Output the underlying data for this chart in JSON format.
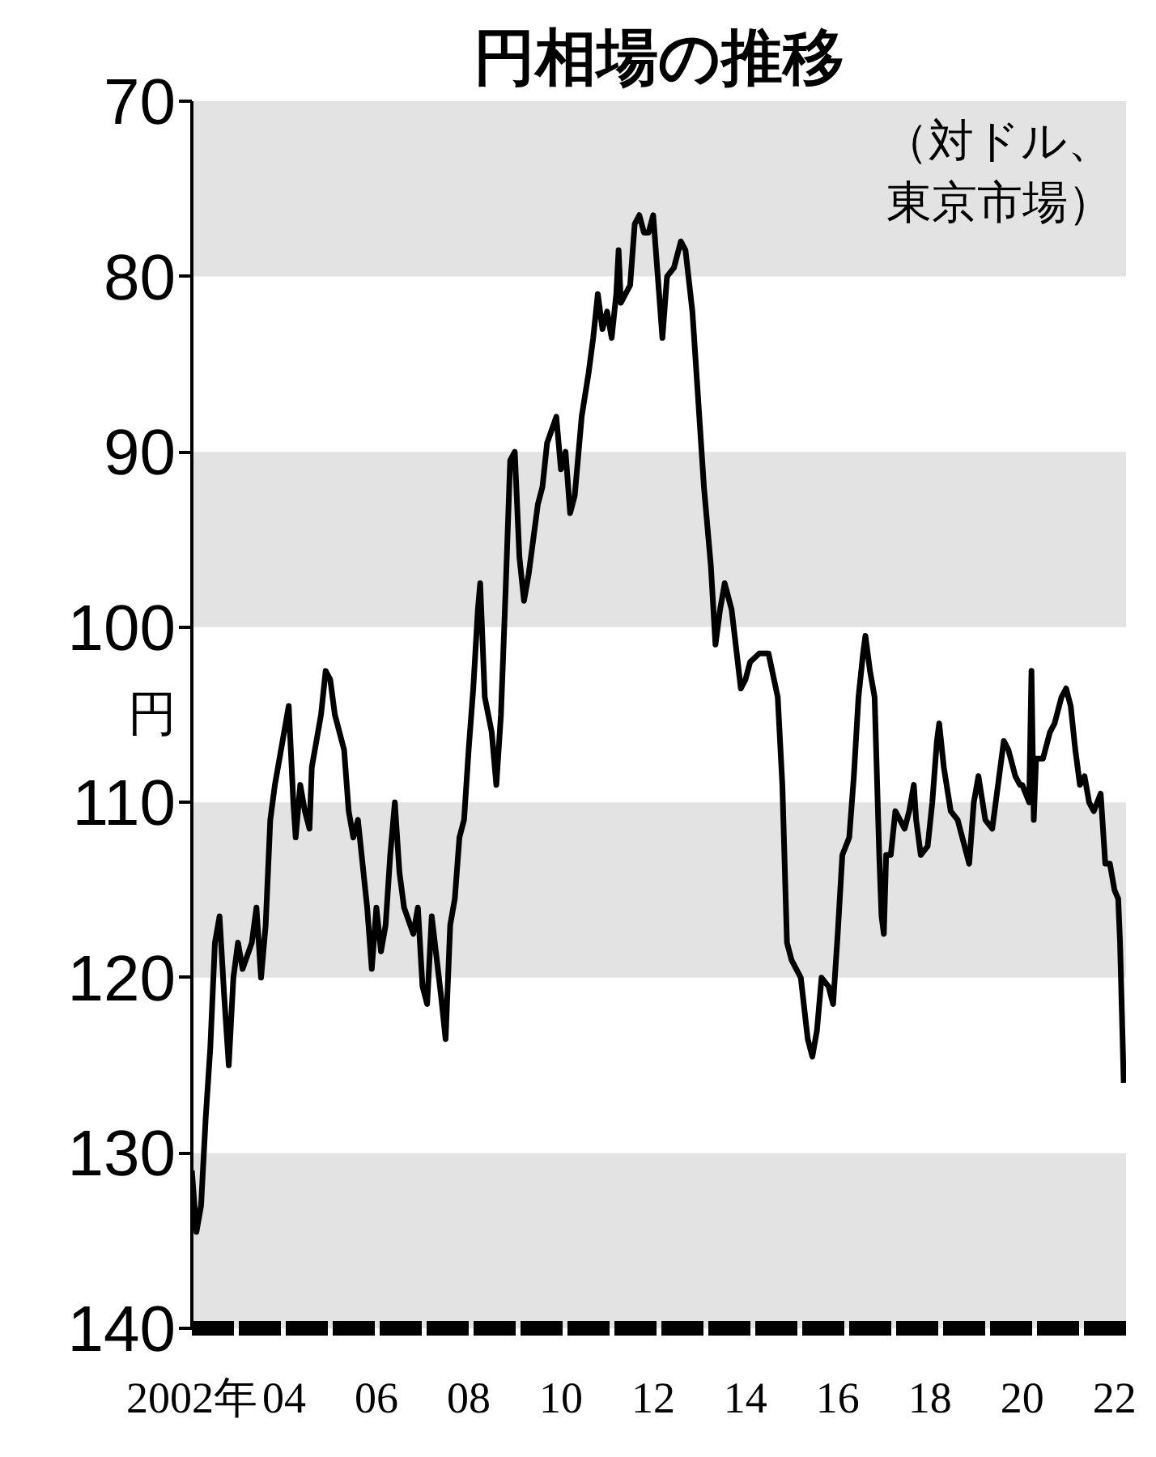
{
  "chart_data": {
    "type": "line",
    "title": "円相場の推移",
    "ylabel": "円",
    "annotations": [
      "（対ドル、東京市場）"
    ],
    "xlim": [
      2002,
      2022.25
    ],
    "xticks": [
      {
        "value": 2002,
        "label": "2002年"
      },
      {
        "value": 2004,
        "label": "04"
      },
      {
        "value": 2006,
        "label": "06"
      },
      {
        "value": 2008,
        "label": "08"
      },
      {
        "value": 2010,
        "label": "10"
      },
      {
        "value": 2012,
        "label": "12"
      },
      {
        "value": 2014,
        "label": "14"
      },
      {
        "value": 2016,
        "label": "16"
      },
      {
        "value": 2018,
        "label": "18"
      },
      {
        "value": 2020,
        "label": "20"
      },
      {
        "value": 2022,
        "label": "22"
      }
    ],
    "ylim": [
      140,
      70
    ],
    "yticks": [
      70,
      80,
      90,
      100,
      110,
      120,
      130,
      140
    ],
    "grid": false,
    "marker": "none",
    "line_style": "solid",
    "bands": [
      {
        "axis": "y",
        "from": 70,
        "to": 80,
        "color": "#e3e3e3"
      },
      {
        "axis": "y",
        "from": 90,
        "to": 100,
        "color": "#e3e3e3"
      },
      {
        "axis": "y",
        "from": 110,
        "to": 120,
        "color": "#e3e3e3"
      },
      {
        "axis": "y",
        "from": 130,
        "to": 140,
        "color": "#e3e3e3"
      }
    ],
    "series": [
      {
        "color": "#000000",
        "x": [
          2002.0,
          2002.1,
          2002.2,
          2002.3,
          2002.4,
          2002.5,
          2002.6,
          2002.7,
          2002.8,
          2002.9,
          2003.0,
          2003.1,
          2003.3,
          2003.4,
          2003.5,
          2003.6,
          2003.7,
          2003.8,
          2003.9,
          2004.0,
          2004.1,
          2004.2,
          2004.25,
          2004.35,
          2004.45,
          2004.55,
          2004.6,
          2004.8,
          2004.9,
          2005.0,
          2005.1,
          2005.3,
          2005.4,
          2005.5,
          2005.6,
          2005.8,
          2005.9,
          2006.0,
          2006.1,
          2006.2,
          2006.3,
          2006.4,
          2006.5,
          2006.6,
          2006.8,
          2006.9,
          2007.0,
          2007.1,
          2007.2,
          2007.4,
          2007.5,
          2007.6,
          2007.7,
          2007.8,
          2007.9,
          2008.0,
          2008.1,
          2008.2,
          2008.25,
          2008.35,
          2008.5,
          2008.6,
          2008.7,
          2008.8,
          2008.9,
          2009.0,
          2009.1,
          2009.2,
          2009.3,
          2009.4,
          2009.5,
          2009.6,
          2009.7,
          2009.9,
          2010.0,
          2010.1,
          2010.2,
          2010.3,
          2010.45,
          2010.6,
          2010.7,
          2010.8,
          2010.9,
          2011.0,
          2011.1,
          2011.2,
          2011.25,
          2011.3,
          2011.5,
          2011.6,
          2011.7,
          2011.8,
          2011.9,
          2012.0,
          2012.1,
          2012.2,
          2012.3,
          2012.45,
          2012.6,
          2012.7,
          2012.85,
          2012.95,
          2013.1,
          2013.25,
          2013.35,
          2013.45,
          2013.55,
          2013.7,
          2013.9,
          2014.0,
          2014.1,
          2014.3,
          2014.5,
          2014.7,
          2014.8,
          2014.9,
          2015.0,
          2015.2,
          2015.35,
          2015.45,
          2015.55,
          2015.65,
          2015.8,
          2015.9,
          2016.0,
          2016.1,
          2016.25,
          2016.35,
          2016.45,
          2016.55,
          2016.6,
          2016.7,
          2016.8,
          2016.9,
          2016.95,
          2017.0,
          2017.05,
          2017.15,
          2017.25,
          2017.35,
          2017.45,
          2017.55,
          2017.65,
          2017.7,
          2017.8,
          2017.95,
          2018.05,
          2018.15,
          2018.2,
          2018.3,
          2018.45,
          2018.6,
          2018.75,
          2018.85,
          2018.95,
          2019.05,
          2019.2,
          2019.35,
          2019.5,
          2019.6,
          2019.7,
          2019.85,
          2019.95,
          2020.0,
          2020.15,
          2020.2,
          2020.25,
          2020.3,
          2020.45,
          2020.6,
          2020.7,
          2020.85,
          2020.95,
          2021.05,
          2021.15,
          2021.25,
          2021.35,
          2021.45,
          2021.55,
          2021.7,
          2021.8,
          2021.9,
          2022.0,
          2022.08,
          2022.12,
          2022.16,
          2022.2
        ],
        "values": [
          131,
          134.5,
          133,
          128,
          124,
          118,
          116.5,
          121,
          125,
          120,
          118,
          119.5,
          118,
          116,
          120,
          117,
          111,
          109,
          107.5,
          106,
          104.5,
          110,
          112,
          109,
          110.5,
          111.5,
          108,
          105,
          102.5,
          103,
          105,
          107,
          110.5,
          112,
          111,
          116,
          119.5,
          116,
          118.5,
          117,
          113,
          110,
          114,
          116,
          117.5,
          116,
          120.5,
          121.5,
          116.5,
          121,
          123.5,
          117,
          115.5,
          112,
          111,
          107,
          103.5,
          99,
          97.5,
          104,
          106,
          109,
          105,
          98,
          90.5,
          90,
          96,
          98.5,
          97,
          95,
          93,
          92,
          89.5,
          88,
          91,
          90,
          93.5,
          92.5,
          88,
          85.5,
          83.5,
          81,
          83,
          82,
          83.5,
          81,
          78.5,
          81.5,
          80.5,
          77,
          76.5,
          77.5,
          77.5,
          76.5,
          80,
          83.5,
          80,
          79.5,
          78,
          78.5,
          82,
          86,
          92,
          96.5,
          101,
          99,
          97.5,
          99,
          103.5,
          103,
          102,
          101.5,
          101.5,
          104,
          109,
          118,
          119,
          120,
          123.5,
          124.5,
          123,
          120,
          120.5,
          121.5,
          117.5,
          113,
          112,
          108.5,
          104,
          101.5,
          100.5,
          102.5,
          104,
          113,
          116.5,
          117.5,
          113,
          113,
          110.5,
          111,
          111.5,
          110.5,
          109,
          111,
          113,
          112.5,
          110,
          106.5,
          105.5,
          108,
          110.5,
          111,
          112.5,
          113.5,
          110,
          108.5,
          111,
          111.5,
          108.5,
          106.5,
          107,
          108.5,
          109,
          109,
          110,
          102.5,
          111,
          107.5,
          107.5,
          106,
          105.5,
          104,
          103.5,
          104.5,
          107,
          109,
          108.5,
          110,
          110.5,
          109.5,
          113.5,
          113.5,
          115,
          115.5,
          118,
          122,
          126
        ]
      }
    ]
  }
}
